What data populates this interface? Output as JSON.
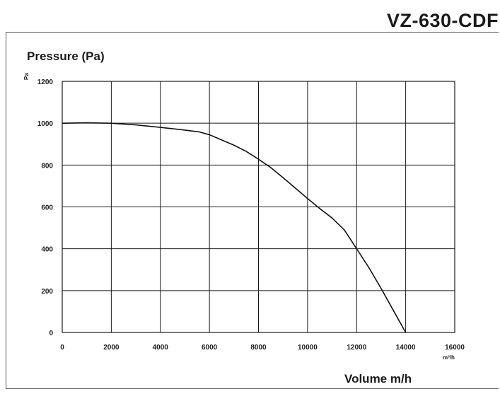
{
  "model_title": "VZ-630-CDF",
  "chart_data": {
    "type": "line",
    "title": "VZ-630-CDF",
    "ylabel": "Pressure (Pa)",
    "xlabel": "Volume m/h",
    "y_unit": "Pa",
    "x_unit": "m³/h",
    "xlim": [
      0,
      16000
    ],
    "ylim": [
      0,
      1200
    ],
    "x_ticks": [
      "0",
      "2000",
      "4000",
      "6000",
      "8000",
      "10000",
      "12000",
      "14000",
      "16000"
    ],
    "y_ticks": [
      "0",
      "200",
      "400",
      "600",
      "800",
      "1000",
      "1200"
    ],
    "grid": true,
    "series": [
      {
        "x": [
          0,
          1000,
          2000,
          3000,
          4000,
          5000,
          5600,
          6000,
          6500,
          7000,
          7500,
          8000,
          8500,
          9000,
          9500,
          10000,
          10500,
          11000,
          11500,
          12000,
          12500,
          13000,
          13500,
          14000
        ],
        "y": [
          1000,
          1002,
          1000,
          992,
          980,
          967,
          958,
          945,
          920,
          895,
          865,
          828,
          788,
          740,
          690,
          640,
          592,
          547,
          490,
          400,
          310,
          210,
          105,
          0
        ]
      }
    ]
  }
}
